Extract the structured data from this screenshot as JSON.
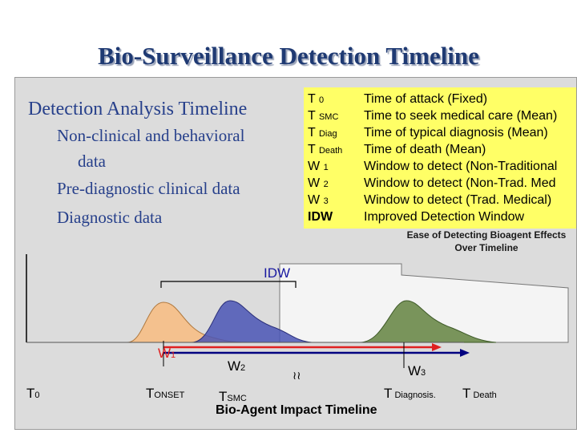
{
  "title": "Bio-Surveillance Detection Timeline",
  "left_panel": {
    "heading": "Detection Analysis Timeline",
    "items": [
      "Non-clinical and behavioral",
      "data",
      "Pre-diagnostic clinical data",
      "Diagnostic data"
    ]
  },
  "legend": {
    "background": "#ffff66",
    "rows": [
      {
        "base": "T",
        "sub": "0",
        "desc": "Time of attack (Fixed)"
      },
      {
        "base": "T",
        "sub": "SMC",
        "desc": "Time to seek medical care (Mean)"
      },
      {
        "base": "T",
        "sub": "Diag",
        "desc": "Time of typical diagnosis (Mean)"
      },
      {
        "base": "T",
        "sub": "Death",
        "desc": "Time of death (Mean)"
      },
      {
        "base": "W",
        "sub": "1",
        "desc": "Window to detect (Non-Traditional"
      },
      {
        "base": "W",
        "sub": "2",
        "desc": "Window to detect (Non-Trad. Med"
      },
      {
        "base": "W",
        "sub": "3",
        "desc": "Window to detect (Trad. Medical)"
      },
      {
        "base": "IDW",
        "sub": "",
        "desc": "Improved Detection Window"
      }
    ]
  },
  "ease_label": "Ease of Detecting Bioagent Effects Over Timeline",
  "chart": {
    "idw_label": "IDW",
    "w1": {
      "base": "W",
      "sub": "1"
    },
    "w2": {
      "base": "W",
      "sub": "2"
    },
    "w3": {
      "base": "W",
      "sub": "3"
    },
    "axis_labels": [
      {
        "base": "T",
        "sub": "0"
      },
      {
        "base": "T",
        "sub": "ONSET"
      },
      {
        "base": "T",
        "sub": "SMC"
      },
      {
        "base": "T",
        "sub": " Diagnosis."
      },
      {
        "base": "T",
        "sub": " Death"
      }
    ],
    "break_mark": "≀≀",
    "x_title": "Bio-Agent Impact Timeline",
    "colors": {
      "orange": "#f4c18e",
      "blue": "#4a55b5",
      "green": "#6b8a4a",
      "red": "#e02020",
      "arrow": "#000080"
    }
  }
}
